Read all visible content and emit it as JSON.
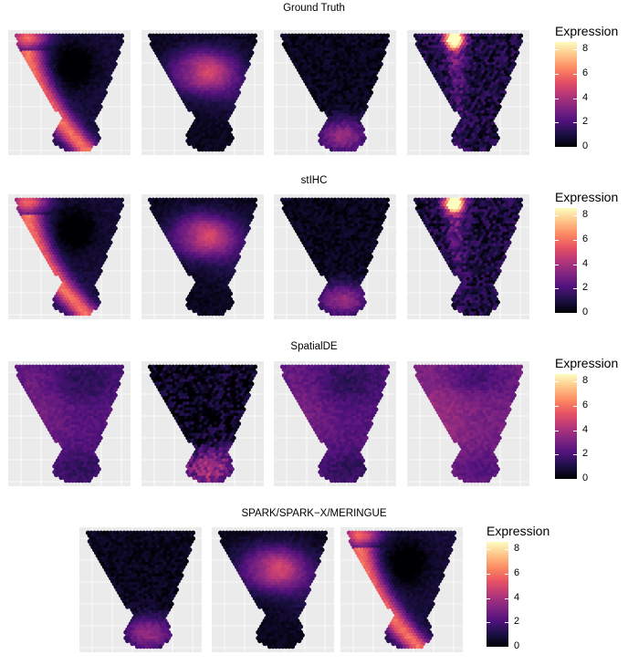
{
  "figure": {
    "rows": [
      {
        "title": "Ground Truth",
        "panels": [
          {
            "pattern": "left-arm",
            "noise": 0.25,
            "hotspot": 0
          },
          {
            "pattern": "center-ring",
            "noise": 0.25,
            "hotspot": 0
          },
          {
            "pattern": "bottom-bulb",
            "noise": 0.4,
            "hotspot": 0
          },
          {
            "pattern": "top-center-hotspot",
            "noise": 0.9,
            "hotspot": 8
          }
        ]
      },
      {
        "title": "stIHC",
        "panels": [
          {
            "pattern": "left-arm",
            "noise": 0.25,
            "hotspot": 0
          },
          {
            "pattern": "center-ring",
            "noise": 0.25,
            "hotspot": 0
          },
          {
            "pattern": "bottom-bulb",
            "noise": 0.4,
            "hotspot": 0
          },
          {
            "pattern": "top-center-hotspot",
            "noise": 0.9,
            "hotspot": 8
          }
        ]
      },
      {
        "title": "SpatialDE",
        "panels": [
          {
            "pattern": "diffuse-mid",
            "noise": 0.35,
            "hotspot": 0
          },
          {
            "pattern": "bottom-bulb-noisy",
            "noise": 1.1,
            "hotspot": 0
          },
          {
            "pattern": "diffuse-mid",
            "noise": 0.35,
            "hotspot": 0
          },
          {
            "pattern": "diffuse-high",
            "noise": 0.35,
            "hotspot": 0
          }
        ]
      },
      {
        "title": "SPARK/SPARK−X/MERINGUE",
        "panels": [
          {
            "pattern": "bottom-bulb",
            "noise": 0.4,
            "hotspot": 0
          },
          {
            "pattern": "center-ring",
            "noise": 0.25,
            "hotspot": 0
          },
          {
            "pattern": "left-arm",
            "noise": 0.25,
            "hotspot": 0
          }
        ]
      }
    ],
    "legend": {
      "title": "Expression",
      "ticks": [
        "8",
        "6",
        "4",
        "2",
        "0"
      ],
      "tick_values": [
        8,
        6,
        4,
        2,
        0
      ],
      "range": [
        0,
        8.6
      ]
    },
    "colormap": [
      "#000004",
      "#1d1147",
      "#51127c",
      "#822681",
      "#b73779",
      "#e75263",
      "#fc8961",
      "#fec488",
      "#fcfdbf"
    ]
  },
  "chart_data": {
    "type": "heatmap",
    "description_of_values": "Spatial gene expression on a tissue section; each facet colored by expression level",
    "color_scale": "magma",
    "legend_title": "Expression",
    "value_range": [
      0,
      8
    ],
    "legend_ticks": [
      0,
      2,
      4,
      6,
      8
    ],
    "facet_titles": [
      "Ground Truth",
      "stIHC",
      "SpatialDE",
      "SPARK/SPARK−X/MERINGUE"
    ],
    "facets_per_row": [
      4,
      4,
      4,
      3
    ]
  }
}
